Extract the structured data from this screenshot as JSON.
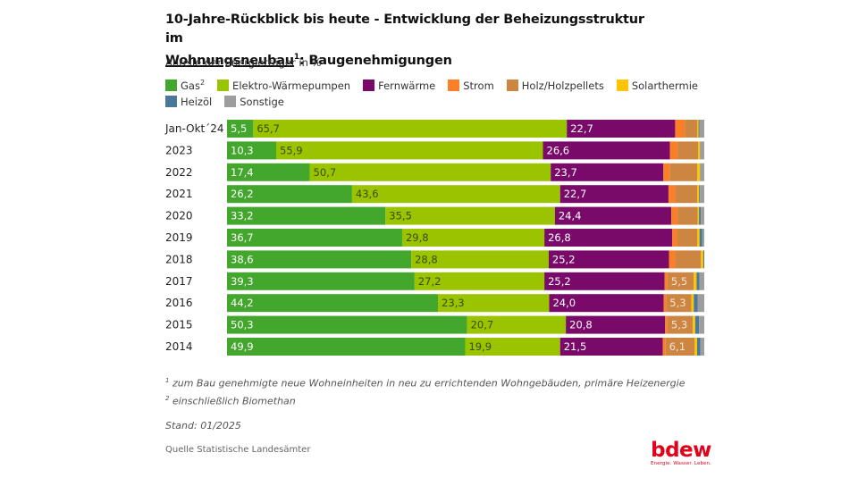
{
  "header": {
    "title_part1": "10-Jahre-Rückblick bis heute - Entwicklung der Beheizungsstruktur im",
    "title_underlined": "Wohnungsneubau",
    "title_sup": "1",
    "title_part2": ": Baugenehmigungen",
    "subtitle": "Anteile der Energieträger in %"
  },
  "legend": [
    {
      "label": "Gas",
      "sup": "2",
      "color": "#43a62d"
    },
    {
      "label": "Elektro-Wärmepumpen",
      "sup": "",
      "color": "#9bc400"
    },
    {
      "label": "Fernwärme",
      "sup": "",
      "color": "#7a0a6a"
    },
    {
      "label": "Strom",
      "sup": "",
      "color": "#fb7f27"
    },
    {
      "label": "Holz/Holzpellets",
      "sup": "",
      "color": "#cd8542"
    },
    {
      "label": "Solarthermie",
      "sup": "",
      "color": "#fcc500"
    },
    {
      "label": "Heizöl",
      "sup": "",
      "color": "#4a7898"
    },
    {
      "label": "Sonstige",
      "sup": "",
      "color": "#9d9d9d"
    }
  ],
  "chart_data": {
    "type": "bar",
    "orientation": "horizontal-stacked-100",
    "title": "10-Jahre-Rückblick bis heute - Entwicklung der Beheizungsstruktur im Wohnungsneubau: Baugenehmigungen",
    "subtitle": "Anteile der Energieträger in %",
    "xlabel": "",
    "ylabel": "",
    "xlim": [
      0,
      100
    ],
    "grid": false,
    "legend_position": "top",
    "categories": [
      "Jan-Okt´24",
      "2023",
      "2022",
      "2021",
      "2020",
      "2019",
      "2018",
      "2017",
      "2016",
      "2015",
      "2014"
    ],
    "series": [
      {
        "name": "Gas",
        "color": "#43a62d",
        "label_color": "#ffffff",
        "values": [
          5.5,
          10.3,
          17.4,
          26.2,
          33.2,
          36.7,
          38.6,
          39.3,
          44.2,
          50.3,
          49.9
        ],
        "labeled": [
          true,
          true,
          true,
          true,
          true,
          true,
          true,
          true,
          true,
          true,
          true
        ]
      },
      {
        "name": "Elektro-Wärmepumpen",
        "color": "#9bc400",
        "label_color": "#3b4a00",
        "values": [
          65.7,
          55.9,
          50.7,
          43.6,
          35.5,
          29.8,
          28.8,
          27.2,
          23.3,
          20.7,
          19.9
        ],
        "labeled": [
          true,
          true,
          true,
          true,
          true,
          true,
          true,
          true,
          true,
          true,
          true
        ]
      },
      {
        "name": "Fernwärme",
        "color": "#7a0a6a",
        "label_color": "#ffffff",
        "values": [
          22.7,
          26.6,
          23.7,
          22.7,
          24.4,
          26.8,
          25.2,
          25.2,
          24.0,
          20.8,
          21.5
        ],
        "labeled": [
          true,
          true,
          true,
          true,
          true,
          true,
          true,
          true,
          true,
          true,
          true
        ]
      },
      {
        "name": "Strom",
        "color": "#fb7f27",
        "label_color": "#ffffff",
        "values": [
          2.0,
          1.6,
          1.3,
          1.4,
          1.3,
          1.0,
          1.3,
          0.6,
          0.5,
          0.5,
          0.6
        ],
        "labeled": [
          false,
          false,
          false,
          false,
          false,
          false,
          false,
          false,
          false,
          false,
          false
        ]
      },
      {
        "name": "Holz/Holzpellets",
        "color": "#cd8542",
        "label_color": "#f6e6d4",
        "values": [
          2.6,
          4.3,
          5.8,
          4.6,
          4.2,
          4.2,
          5.4,
          5.5,
          5.3,
          5.3,
          6.1
        ],
        "labeled": [
          false,
          false,
          false,
          false,
          false,
          false,
          false,
          true,
          true,
          true,
          true
        ]
      },
      {
        "name": "Solarthermie",
        "color": "#fcc500",
        "label_color": "#000000",
        "values": [
          0.3,
          0.4,
          0.6,
          0.4,
          0.3,
          0.5,
          0.5,
          0.6,
          0.5,
          0.5,
          0.5
        ],
        "labeled": [
          false,
          false,
          false,
          false,
          false,
          false,
          false,
          false,
          false,
          false,
          false
        ]
      },
      {
        "name": "Heizöl",
        "color": "#4a7898",
        "label_color": "#ffffff",
        "values": [
          0.2,
          0.1,
          0.1,
          0.2,
          0.4,
          0.6,
          0.2,
          0.6,
          0.8,
          0.8,
          0.7
        ],
        "labeled": [
          false,
          false,
          false,
          false,
          false,
          false,
          false,
          false,
          false,
          false,
          false
        ]
      },
      {
        "name": "Sonstige",
        "color": "#9d9d9d",
        "label_color": "#ffffff",
        "values": [
          1.0,
          0.8,
          0.8,
          0.9,
          0.7,
          0.4,
          0.0,
          1.0,
          1.4,
          1.1,
          0.8
        ],
        "labeled": [
          false,
          false,
          false,
          false,
          false,
          false,
          false,
          false,
          false,
          false,
          false
        ]
      }
    ]
  },
  "footnotes": {
    "note1_sup": "1",
    "note1": " zum Bau genehmigte neue Wohneinheiten in neu zu errichtenden Wohngebäuden, primäre Heizenergie",
    "note2_sup": "2",
    "note2": " einschließlich Biomethan",
    "stand": "Stand: 01/2025",
    "source": "Quelle Statistische Landesämter"
  },
  "logo": {
    "text": "bdew",
    "claim": "Energie. Wasser. Leben.",
    "color": "#e3001b"
  }
}
